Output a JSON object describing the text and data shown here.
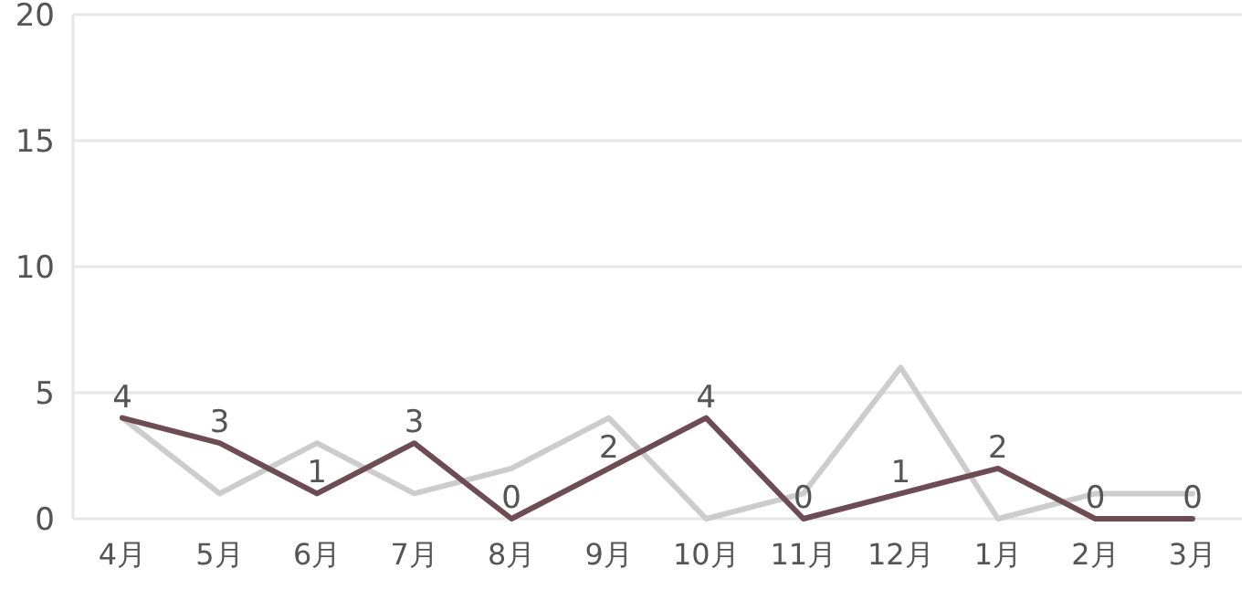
{
  "chart_data": {
    "type": "line",
    "categories": [
      "4月",
      "5月",
      "6月",
      "7月",
      "8月",
      "9月",
      "10月",
      "11月",
      "12月",
      "1月",
      "2月",
      "3月"
    ],
    "series": [
      {
        "color": "#cccccc",
        "values": [
          4,
          1,
          3,
          1,
          2,
          4,
          0,
          1,
          6,
          0,
          1,
          1
        ]
      },
      {
        "color": "#6e4c55",
        "values": [
          4,
          3,
          1,
          3,
          0,
          2,
          4,
          0,
          1,
          2,
          0,
          0
        ],
        "value_labels": [
          "4",
          "3",
          "1",
          "3",
          "0",
          "2",
          "4",
          "0",
          "1",
          "2",
          "0",
          "0"
        ]
      }
    ],
    "ylim": [
      0,
      20
    ],
    "yticks": [
      0,
      5,
      10,
      15,
      20
    ],
    "grid": "y",
    "marker": "none",
    "line_style": "solid"
  }
}
